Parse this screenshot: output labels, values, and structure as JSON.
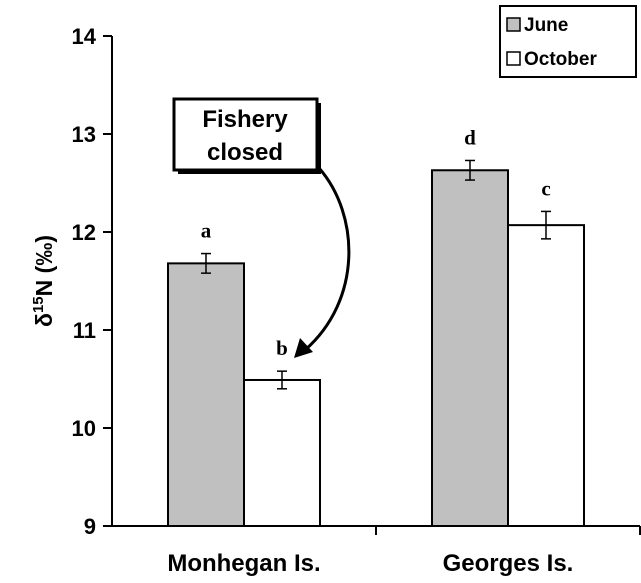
{
  "chart_data": {
    "type": "bar",
    "categories": [
      "Monhegan Is.",
      "Georges Is."
    ],
    "series": [
      {
        "name": "June",
        "values": [
          11.68,
          12.63
        ],
        "errors": [
          0.1,
          0.1
        ],
        "labels": [
          "a",
          "d"
        ],
        "color": "#c0c0c0"
      },
      {
        "name": "October",
        "values": [
          10.49,
          12.07
        ],
        "errors": [
          0.09,
          0.14
        ],
        "labels": [
          "b",
          "c"
        ],
        "color": "#ffffff"
      }
    ],
    "ylabel_main": "δ",
    "ylabel_sup": "15",
    "ylabel_rest": "N (‰)",
    "ylim": [
      9,
      14
    ],
    "yticks": [
      "9",
      "10",
      "11",
      "12",
      "13",
      "14"
    ],
    "grid": false,
    "legend_position": "top-right",
    "annotation": {
      "line1": "Fishery",
      "line2": "closed"
    }
  }
}
